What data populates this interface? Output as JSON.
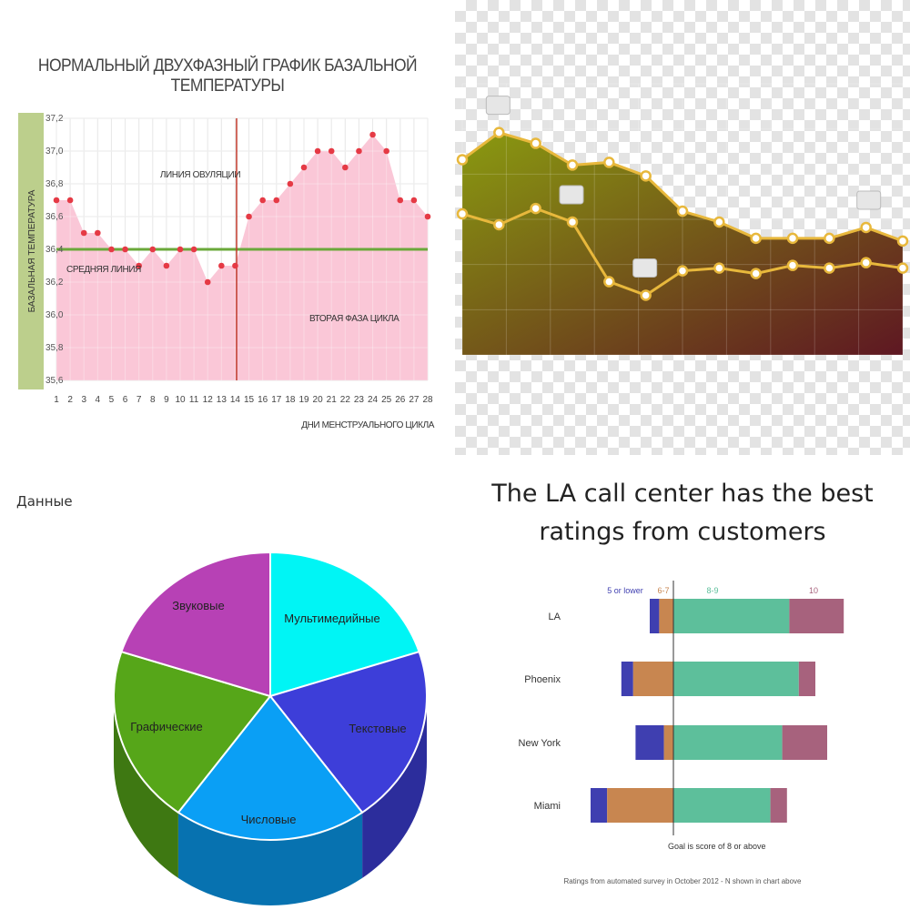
{
  "chart_data": [
    {
      "type": "line",
      "title": "НОРМАЛЬНЫЙ ДВУХФАЗНЫЙ ГРАФИК БАЗАЛЬНОЙ ТЕМПЕРАТУРЫ",
      "xlabel": "ДНИ МЕНСТРУАЛЬНОГО ЦИКЛА",
      "ylabel": "БАЗАЛЬНАЯ ТЕМПЕРАТУРА",
      "x": [
        1,
        2,
        3,
        4,
        5,
        6,
        7,
        8,
        9,
        10,
        11,
        12,
        13,
        14,
        15,
        16,
        17,
        18,
        19,
        20,
        21,
        22,
        23,
        24,
        25,
        26,
        27,
        28
      ],
      "values": [
        36.7,
        36.7,
        36.5,
        36.5,
        36.4,
        36.4,
        36.3,
        36.4,
        36.3,
        36.4,
        36.4,
        36.2,
        36.3,
        36.3,
        36.6,
        36.7,
        36.7,
        36.8,
        36.9,
        37.0,
        37.0,
        36.9,
        37.0,
        37.1,
        37.0,
        36.7,
        36.7,
        36.6
      ],
      "ylim": [
        35.6,
        37.2
      ],
      "yticks": [
        "35,6",
        "35,8",
        "36,0",
        "36,2",
        "36,4",
        "36,6",
        "36,8",
        "37,0",
        "37,2"
      ],
      "average_line": 36.4,
      "ovulation_day": 14,
      "annotations": {
        "ovulation": "ЛИНИЯ ОВУЛЯЦИИ",
        "average": "СРЕДНЯЯ ЛИНИЯ",
        "phase2": "ВТОРАЯ ФАЗА ЦИКЛА"
      },
      "colors": {
        "area": "#f9c1d3",
        "points": "#e53a45",
        "average": "#6aa83a",
        "ovulation": "#c0392b",
        "yband": "#bccf8c"
      },
      "grid": true
    },
    {
      "type": "line",
      "series": [
        {
          "values": [
            72,
            82,
            78,
            70,
            71,
            66,
            53,
            49,
            43,
            43,
            43,
            47,
            42
          ]
        },
        {
          "values": [
            52,
            48,
            54,
            49,
            27,
            22,
            31,
            32,
            30,
            33,
            32,
            34,
            32
          ]
        }
      ],
      "callouts": [
        "",
        "",
        ""
      ],
      "colors": {
        "line": "#e8b83c",
        "area_top": "#8a9a10",
        "area_bottom": "#5e1722",
        "marker_fill": "#ffffff",
        "marker_stroke": "#e8b83c"
      },
      "grid": true
    },
    {
      "type": "pie",
      "title": "Данные",
      "slices": [
        {
          "label": "Мультимедийные",
          "value": 20,
          "color": "#00f5f5"
        },
        {
          "label": "Текстовые",
          "value": 20,
          "color": "#3d3ed9"
        },
        {
          "label": "Числовые",
          "value": 20,
          "color": "#0a9ff5"
        },
        {
          "label": "Графические",
          "value": 20,
          "color": "#56a619"
        },
        {
          "label": "Звуковые",
          "value": 20,
          "color": "#b741b5"
        }
      ]
    },
    {
      "type": "bar",
      "title": "The LA call center has the best ratings from customers",
      "categories": [
        "LA",
        "Phoenix",
        "New York",
        "Miami"
      ],
      "series": [
        {
          "name": "5 or lower",
          "values": [
            4,
            5,
            12,
            7
          ],
          "color": "#3f3fb0"
        },
        {
          "name": "6-7",
          "values": [
            6,
            17,
            4,
            28
          ],
          "color": "#c88650"
        },
        {
          "name": "8-9",
          "values": [
            49,
            53,
            46,
            41
          ],
          "color": "#5dbf9b"
        },
        {
          "name": "10",
          "values": [
            23,
            7,
            19,
            7
          ],
          "color": "#a7627d"
        }
      ],
      "goal_label": "Goal is score of 8 or above",
      "footnote": "Ratings from automated survey in October 2012 - N shown in chart above"
    }
  ]
}
